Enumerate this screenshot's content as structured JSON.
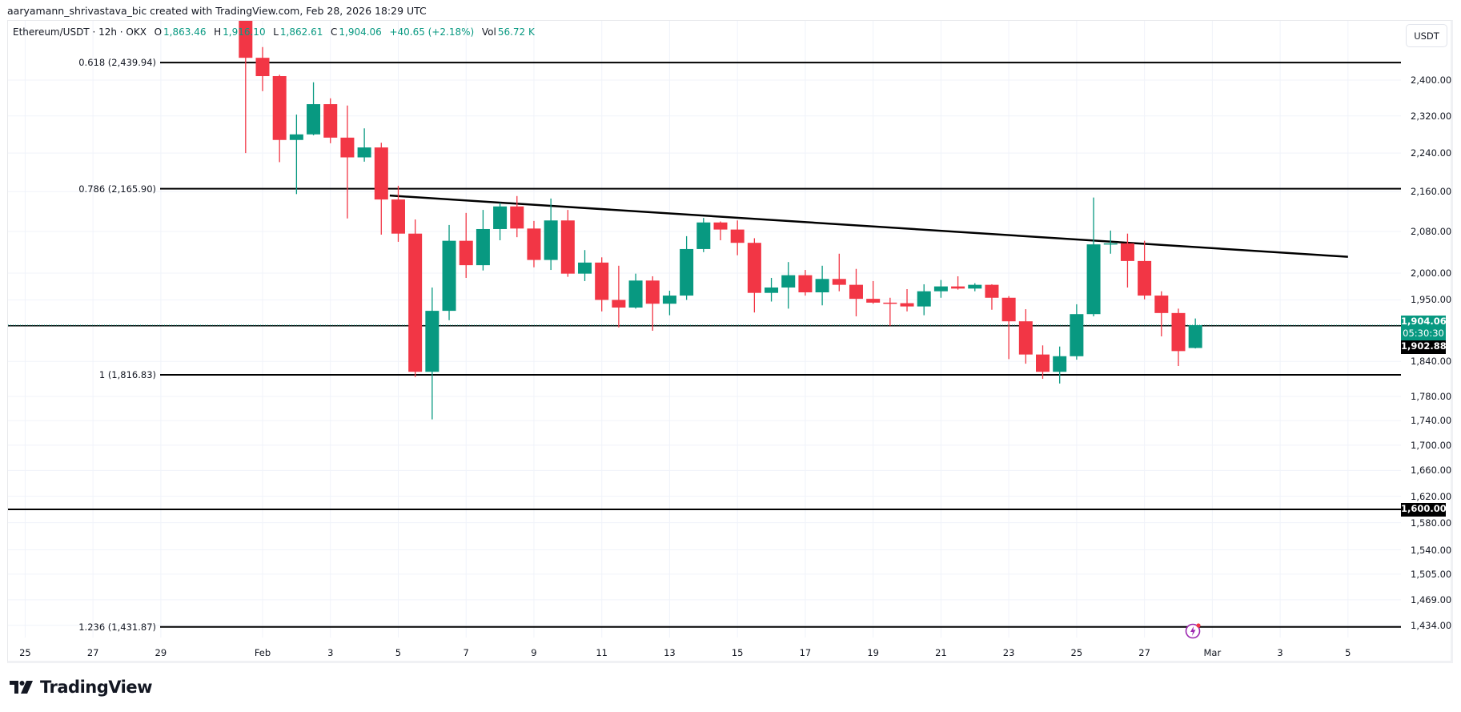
{
  "watermark": "aaryamann_shrivastava_bic created with TradingView.com, Feb 28, 2026 18:29 UTC",
  "legend": {
    "symbol": "Ethereum/USDT · 12h · OKX",
    "o_label": "O",
    "o": "1,863.46",
    "h_label": "H",
    "h": "1,916.10",
    "l_label": "L",
    "l": "1,862.61",
    "c_label": "C",
    "c": "1,904.06",
    "change": "+40.65 (+2.18%)",
    "vol_label": "Vol",
    "vol": "56.72 K"
  },
  "currency_button": "USDT",
  "colors": {
    "up": "#089981",
    "down": "#F23645",
    "grid": "#f0f3fa",
    "line": "#000000",
    "alert": "#9c27b0"
  },
  "price_axis": {
    "scale": "log",
    "ticks": [
      {
        "value": 2400,
        "label": "2,400.00"
      },
      {
        "value": 2320,
        "label": "2,320.00"
      },
      {
        "value": 2240,
        "label": "2,240.00"
      },
      {
        "value": 2160,
        "label": "2,160.00"
      },
      {
        "value": 2080,
        "label": "2,080.00"
      },
      {
        "value": 2000,
        "label": "2,000.00"
      },
      {
        "value": 1950,
        "label": "1,950.00"
      },
      {
        "value": 1840,
        "label": "1,840.00"
      },
      {
        "value": 1780,
        "label": "1,780.00"
      },
      {
        "value": 1740,
        "label": "1,740.00"
      },
      {
        "value": 1700,
        "label": "1,700.00"
      },
      {
        "value": 1660,
        "label": "1,660.00"
      },
      {
        "value": 1620,
        "label": "1,620.00"
      },
      {
        "value": 1580,
        "label": "1,580.00"
      },
      {
        "value": 1540,
        "label": "1,540.00"
      },
      {
        "value": 1505,
        "label": "1,505.00"
      },
      {
        "value": 1469,
        "label": "1,469.00"
      },
      {
        "value": 1434,
        "label": "1,434.00"
      }
    ]
  },
  "time_axis": [
    {
      "date": "2026-01-25",
      "label": "25"
    },
    {
      "date": "2026-01-27",
      "label": "27"
    },
    {
      "date": "2026-01-29",
      "label": "29"
    },
    {
      "date": "2026-02-01",
      "label": "Feb"
    },
    {
      "date": "2026-02-03",
      "label": "3"
    },
    {
      "date": "2026-02-05",
      "label": "5"
    },
    {
      "date": "2026-02-07",
      "label": "7"
    },
    {
      "date": "2026-02-09",
      "label": "9"
    },
    {
      "date": "2026-02-11",
      "label": "11"
    },
    {
      "date": "2026-02-13",
      "label": "13"
    },
    {
      "date": "2026-02-15",
      "label": "15"
    },
    {
      "date": "2026-02-17",
      "label": "17"
    },
    {
      "date": "2026-02-19",
      "label": "19"
    },
    {
      "date": "2026-02-21",
      "label": "21"
    },
    {
      "date": "2026-02-23",
      "label": "23"
    },
    {
      "date": "2026-02-25",
      "label": "25"
    },
    {
      "date": "2026-02-27",
      "label": "27"
    },
    {
      "date": "2026-03-01",
      "label": "Mar"
    },
    {
      "date": "2026-03-03",
      "label": "3"
    },
    {
      "date": "2026-03-05",
      "label": "5"
    }
  ],
  "fib_levels": [
    {
      "label": "0.618 (2,439.94)",
      "value": 2439.94
    },
    {
      "label": "0.786 (2,165.90)",
      "value": 2165.9
    },
    {
      "label": "1 (1,816.83)",
      "value": 1816.83
    },
    {
      "label": "1.236 (1,431.87)",
      "value": 1431.87
    }
  ],
  "horizontal_lines": [
    {
      "value": 1600.0,
      "label": "1,600.00"
    },
    {
      "value": 1902.88,
      "label": "1,902.88"
    }
  ],
  "last_price": {
    "value": 1904.06,
    "label": "1,904.06",
    "countdown": "05:30:30"
  },
  "trendline": {
    "start": {
      "t": "2026-02-04T18:00Z",
      "price": 2152
    },
    "end": {
      "t": "2026-03-05T00:00Z",
      "price": 2031
    }
  },
  "candles": [
    {
      "t": "2026-01-31T12:00Z",
      "o": 2580,
      "h": 2620,
      "l": 2240,
      "c": 2451
    },
    {
      "t": "2026-02-01T00:00Z",
      "o": 2451,
      "h": 2476,
      "l": 2375,
      "c": 2409
    },
    {
      "t": "2026-02-01T12:00Z",
      "o": 2409,
      "h": 2412,
      "l": 2221,
      "c": 2268
    },
    {
      "t": "2026-02-02T00:00Z",
      "o": 2268,
      "h": 2323,
      "l": 2155,
      "c": 2280
    },
    {
      "t": "2026-02-02T12:00Z",
      "o": 2280,
      "h": 2395,
      "l": 2278,
      "c": 2346
    },
    {
      "t": "2026-02-03T00:00Z",
      "o": 2346,
      "h": 2359,
      "l": 2261,
      "c": 2273
    },
    {
      "t": "2026-02-03T12:00Z",
      "o": 2273,
      "h": 2343,
      "l": 2106,
      "c": 2231
    },
    {
      "t": "2026-02-04T00:00Z",
      "o": 2231,
      "h": 2293,
      "l": 2222,
      "c": 2252
    },
    {
      "t": "2026-02-04T12:00Z",
      "o": 2252,
      "h": 2262,
      "l": 2074,
      "c": 2144
    },
    {
      "t": "2026-02-05T00:00Z",
      "o": 2144,
      "h": 2172,
      "l": 2060,
      "c": 2076
    },
    {
      "t": "2026-02-05T12:00Z",
      "o": 2076,
      "h": 2104,
      "l": 1813,
      "c": 1822
    },
    {
      "t": "2026-02-06T00:00Z",
      "o": 1822,
      "h": 1973,
      "l": 1742,
      "c": 1930
    },
    {
      "t": "2026-02-06T12:00Z",
      "o": 1930,
      "h": 2093,
      "l": 1913,
      "c": 2062
    },
    {
      "t": "2026-02-07T00:00Z",
      "o": 2062,
      "h": 2117,
      "l": 1991,
      "c": 2015
    },
    {
      "t": "2026-02-07T12:00Z",
      "o": 2015,
      "h": 2123,
      "l": 2005,
      "c": 2085
    },
    {
      "t": "2026-02-08T00:00Z",
      "o": 2085,
      "h": 2137,
      "l": 2063,
      "c": 2130
    },
    {
      "t": "2026-02-08T12:00Z",
      "o": 2130,
      "h": 2151,
      "l": 2069,
      "c": 2086
    },
    {
      "t": "2026-02-09T00:00Z",
      "o": 2086,
      "h": 2101,
      "l": 2011,
      "c": 2025
    },
    {
      "t": "2026-02-09T12:00Z",
      "o": 2025,
      "h": 2146,
      "l": 2006,
      "c": 2102
    },
    {
      "t": "2026-02-10T00:00Z",
      "o": 2102,
      "h": 2123,
      "l": 1993,
      "c": 1999
    },
    {
      "t": "2026-02-10T12:00Z",
      "o": 1999,
      "h": 2044,
      "l": 1985,
      "c": 2020
    },
    {
      "t": "2026-02-11T00:00Z",
      "o": 2020,
      "h": 2030,
      "l": 1929,
      "c": 1950
    },
    {
      "t": "2026-02-11T12:00Z",
      "o": 1950,
      "h": 2014,
      "l": 1900,
      "c": 1936
    },
    {
      "t": "2026-02-12T00:00Z",
      "o": 1936,
      "h": 1999,
      "l": 1934,
      "c": 1986
    },
    {
      "t": "2026-02-12T12:00Z",
      "o": 1986,
      "h": 1994,
      "l": 1894,
      "c": 1943
    },
    {
      "t": "2026-02-13T00:00Z",
      "o": 1943,
      "h": 1967,
      "l": 1922,
      "c": 1958
    },
    {
      "t": "2026-02-13T12:00Z",
      "o": 1958,
      "h": 2071,
      "l": 1950,
      "c": 2046
    },
    {
      "t": "2026-02-14T00:00Z",
      "o": 2046,
      "h": 2107,
      "l": 2040,
      "c": 2098
    },
    {
      "t": "2026-02-14T12:00Z",
      "o": 2098,
      "h": 2100,
      "l": 2063,
      "c": 2084
    },
    {
      "t": "2026-02-15T00:00Z",
      "o": 2084,
      "h": 2102,
      "l": 2034,
      "c": 2058
    },
    {
      "t": "2026-02-15T12:00Z",
      "o": 2058,
      "h": 2067,
      "l": 1927,
      "c": 1963
    },
    {
      "t": "2026-02-16T00:00Z",
      "o": 1963,
      "h": 1991,
      "l": 1947,
      "c": 1973
    },
    {
      "t": "2026-02-16T12:00Z",
      "o": 1973,
      "h": 2021,
      "l": 1934,
      "c": 1996
    },
    {
      "t": "2026-02-17T00:00Z",
      "o": 1996,
      "h": 2006,
      "l": 1958,
      "c": 1964
    },
    {
      "t": "2026-02-17T12:00Z",
      "o": 1964,
      "h": 2014,
      "l": 1940,
      "c": 1989
    },
    {
      "t": "2026-02-18T00:00Z",
      "o": 1989,
      "h": 2037,
      "l": 1966,
      "c": 1978
    },
    {
      "t": "2026-02-18T12:00Z",
      "o": 1978,
      "h": 2008,
      "l": 1920,
      "c": 1952
    },
    {
      "t": "2026-02-19T00:00Z",
      "o": 1952,
      "h": 1985,
      "l": 1943,
      "c": 1945
    },
    {
      "t": "2026-02-19T12:00Z",
      "o": 1945,
      "h": 1954,
      "l": 1903,
      "c": 1944
    },
    {
      "t": "2026-02-20T00:00Z",
      "o": 1944,
      "h": 1970,
      "l": 1929,
      "c": 1938
    },
    {
      "t": "2026-02-20T12:00Z",
      "o": 1938,
      "h": 1979,
      "l": 1922,
      "c": 1966
    },
    {
      "t": "2026-02-21T00:00Z",
      "o": 1966,
      "h": 1987,
      "l": 1954,
      "c": 1975
    },
    {
      "t": "2026-02-21T12:00Z",
      "o": 1975,
      "h": 1994,
      "l": 1969,
      "c": 1971
    },
    {
      "t": "2026-02-22T00:00Z",
      "o": 1971,
      "h": 1981,
      "l": 1966,
      "c": 1978
    },
    {
      "t": "2026-02-22T12:00Z",
      "o": 1978,
      "h": 1979,
      "l": 1932,
      "c": 1954
    },
    {
      "t": "2026-02-23T00:00Z",
      "o": 1954,
      "h": 1957,
      "l": 1844,
      "c": 1911
    },
    {
      "t": "2026-02-23T12:00Z",
      "o": 1911,
      "h": 1933,
      "l": 1836,
      "c": 1852
    },
    {
      "t": "2026-02-24T00:00Z",
      "o": 1852,
      "h": 1868,
      "l": 1810,
      "c": 1822
    },
    {
      "t": "2026-02-24T12:00Z",
      "o": 1822,
      "h": 1866,
      "l": 1802,
      "c": 1849
    },
    {
      "t": "2026-02-25T00:00Z",
      "o": 1849,
      "h": 1942,
      "l": 1843,
      "c": 1924
    },
    {
      "t": "2026-02-25T12:00Z",
      "o": 1924,
      "h": 2148,
      "l": 1920,
      "c": 2055
    },
    {
      "t": "2026-02-26T00:00Z",
      "o": 2055,
      "h": 2082,
      "l": 2037,
      "c": 2057
    },
    {
      "t": "2026-02-26T12:00Z",
      "o": 2057,
      "h": 2076,
      "l": 1973,
      "c": 2023
    },
    {
      "t": "2026-02-27T00:00Z",
      "o": 2023,
      "h": 2062,
      "l": 1951,
      "c": 1958
    },
    {
      "t": "2026-02-27T12:00Z",
      "o": 1958,
      "h": 1966,
      "l": 1884,
      "c": 1926
    },
    {
      "t": "2026-02-28T00:00Z",
      "o": 1926,
      "h": 1934,
      "l": 1832,
      "c": 1858
    },
    {
      "t": "2026-02-28T12:00Z",
      "o": 1863.46,
      "h": 1916.1,
      "l": 1862.61,
      "c": 1904.06
    }
  ],
  "logo": {
    "text": "TradingView"
  },
  "alert_icon": "lightning-alert-icon"
}
